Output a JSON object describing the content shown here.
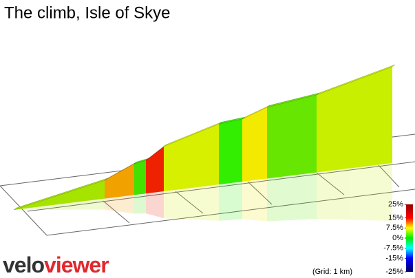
{
  "chart_data": {
    "type": "climb-profile",
    "title": "The climb, Isle of Skye",
    "x": [
      0,
      1.32,
      1.75,
      1.92,
      2.18,
      2.98,
      3.32,
      3.68,
      4.4,
      5.5
    ],
    "values": [
      0,
      61,
      104,
      111,
      150,
      202,
      209,
      238,
      259,
      322
    ],
    "segment_colors": [
      "#a6e400",
      "#f2a200",
      "#44e000",
      "#ee2200",
      "#d6f000",
      "#33ee00",
      "#f2ea00",
      "#66e600",
      "#c8ee00"
    ],
    "colorbar_ticks": [
      {
        "value": 25,
        "label": "25%"
      },
      {
        "value": 15,
        "label": "15%"
      },
      {
        "value": 7.5,
        "label": "7.5%"
      },
      {
        "value": 0,
        "label": "0%"
      },
      {
        "value": -7.5,
        "label": "-7.5%"
      },
      {
        "value": -15,
        "label": "-15%"
      },
      {
        "value": -25,
        "label": "-25%"
      }
    ],
    "colorbar_lim": [
      -25,
      25
    ],
    "grid_note": "(Grid: 1 km)",
    "logo": {
      "part1": "velo",
      "part2": "viewer"
    }
  }
}
